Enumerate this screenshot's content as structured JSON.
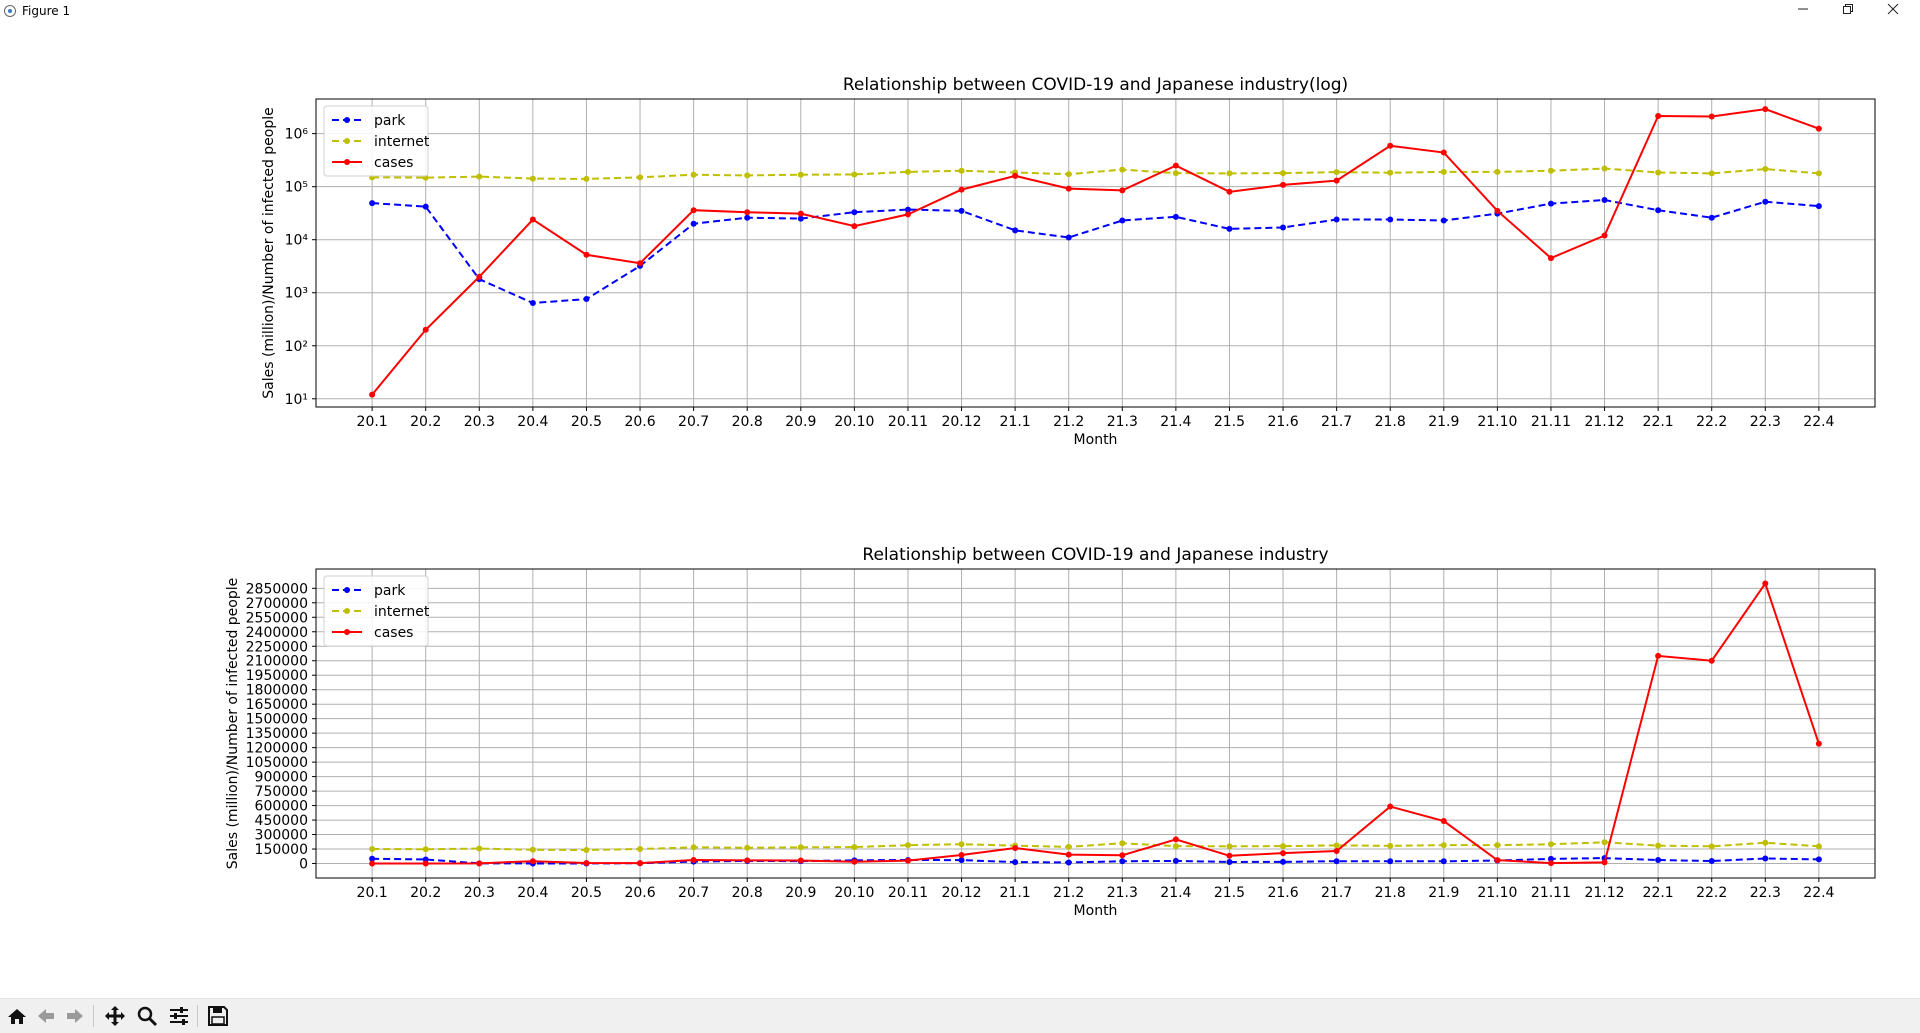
{
  "window": {
    "title": "Figure 1",
    "minimize_icon": "minimize-icon",
    "maximize_icon": "restore-icon",
    "close_icon": "close-icon"
  },
  "toolbar": {
    "buttons": [
      {
        "name": "home-button",
        "icon": "home-icon"
      },
      {
        "name": "back-button",
        "icon": "arrow-left-icon"
      },
      {
        "name": "forward-button",
        "icon": "arrow-right-icon"
      },
      {
        "name": "pan-button",
        "icon": "move-icon"
      },
      {
        "name": "zoom-button",
        "icon": "magnifier-icon"
      },
      {
        "name": "configure-subplots-button",
        "icon": "sliders-icon"
      },
      {
        "name": "save-button",
        "icon": "floppy-disk-icon"
      }
    ]
  },
  "chart_data": [
    {
      "type": "line",
      "title": "Relationship between COVID-19 and Japanese industry(log)",
      "xlabel": "Month",
      "ylabel": "Sales (million)/Number of infected people",
      "yscale": "log",
      "ylim": [
        7,
        4500000
      ],
      "ytick_labels": [
        "10^1",
        "10^2",
        "10^3",
        "10^4",
        "10^5",
        "10^6"
      ],
      "grid": true,
      "legend": "upper-left",
      "categories": [
        "20.1",
        "20.2",
        "20.3",
        "20.4",
        "20.5",
        "20.6",
        "20.7",
        "20.8",
        "20.9",
        "20.10",
        "20.11",
        "20.12",
        "21.1",
        "21.2",
        "21.3",
        "21.4",
        "21.5",
        "21.6",
        "21.7",
        "21.8",
        "21.9",
        "21.10",
        "21.11",
        "21.12",
        "22.1",
        "22.2",
        "22.3",
        "22.4"
      ],
      "series": [
        {
          "name": "park",
          "color": "#0000ff",
          "style": "dashed",
          "marker": "dot",
          "values": [
            49000,
            42000,
            1800,
            640,
            760,
            3200,
            20000,
            26000,
            25000,
            33000,
            37000,
            35000,
            15000,
            11000,
            23000,
            27000,
            16000,
            17000,
            24000,
            24000,
            23000,
            31000,
            48000,
            56000,
            36000,
            26000,
            52000,
            43000
          ]
        },
        {
          "name": "internet",
          "color": "#bfbf00",
          "style": "dashed",
          "marker": "dot",
          "values": [
            150000,
            148000,
            155000,
            142000,
            140000,
            150000,
            168000,
            163000,
            168000,
            170000,
            190000,
            200000,
            185000,
            172000,
            210000,
            180000,
            178000,
            180000,
            188000,
            183000,
            190000,
            190000,
            200000,
            220000,
            185000,
            178000,
            215000,
            178000
          ]
        },
        {
          "name": "cases",
          "color": "#ff0000",
          "style": "solid",
          "marker": "dot",
          "values": [
            12,
            200,
            2000,
            24000,
            5200,
            3600,
            36000,
            33000,
            31000,
            18000,
            30000,
            88000,
            160000,
            92000,
            85000,
            250000,
            80000,
            108000,
            130000,
            590000,
            440000,
            35000,
            4500,
            12000,
            2150000,
            2100000,
            2900000,
            1240000
          ]
        }
      ]
    },
    {
      "type": "line",
      "title": "Relationship between COVID-19 and Japanese industry",
      "xlabel": "Month",
      "ylabel": "Sales (million)/Number of infected people",
      "yscale": "linear",
      "ylim": [
        -150000,
        3050000
      ],
      "yticks": [
        0,
        150000,
        300000,
        450000,
        600000,
        750000,
        900000,
        1050000,
        1200000,
        1350000,
        1500000,
        1650000,
        1800000,
        1950000,
        2100000,
        2250000,
        2400000,
        2550000,
        2700000,
        2850000
      ],
      "grid": true,
      "legend": "upper-left",
      "categories": [
        "20.1",
        "20.2",
        "20.3",
        "20.4",
        "20.5",
        "20.6",
        "20.7",
        "20.8",
        "20.9",
        "20.10",
        "20.11",
        "20.12",
        "21.1",
        "21.2",
        "21.3",
        "21.4",
        "21.5",
        "21.6",
        "21.7",
        "21.8",
        "21.9",
        "21.10",
        "21.11",
        "21.12",
        "22.1",
        "22.2",
        "22.3",
        "22.4"
      ],
      "series": [
        {
          "name": "park",
          "color": "#0000ff",
          "style": "dashed",
          "marker": "dot",
          "values": [
            49000,
            42000,
            1800,
            640,
            760,
            3200,
            20000,
            26000,
            25000,
            33000,
            37000,
            35000,
            15000,
            11000,
            23000,
            27000,
            16000,
            17000,
            24000,
            24000,
            23000,
            31000,
            48000,
            56000,
            36000,
            26000,
            52000,
            43000
          ]
        },
        {
          "name": "internet",
          "color": "#bfbf00",
          "style": "dashed",
          "marker": "dot",
          "values": [
            150000,
            148000,
            155000,
            142000,
            140000,
            150000,
            168000,
            163000,
            168000,
            170000,
            190000,
            200000,
            185000,
            172000,
            210000,
            180000,
            178000,
            180000,
            188000,
            183000,
            190000,
            190000,
            200000,
            220000,
            185000,
            178000,
            215000,
            178000
          ]
        },
        {
          "name": "cases",
          "color": "#ff0000",
          "style": "solid",
          "marker": "dot",
          "values": [
            12,
            200,
            2000,
            24000,
            5200,
            3600,
            36000,
            33000,
            31000,
            18000,
            30000,
            88000,
            160000,
            92000,
            85000,
            250000,
            80000,
            108000,
            130000,
            590000,
            440000,
            35000,
            4500,
            12000,
            2150000,
            2100000,
            2900000,
            1240000
          ]
        }
      ]
    }
  ]
}
